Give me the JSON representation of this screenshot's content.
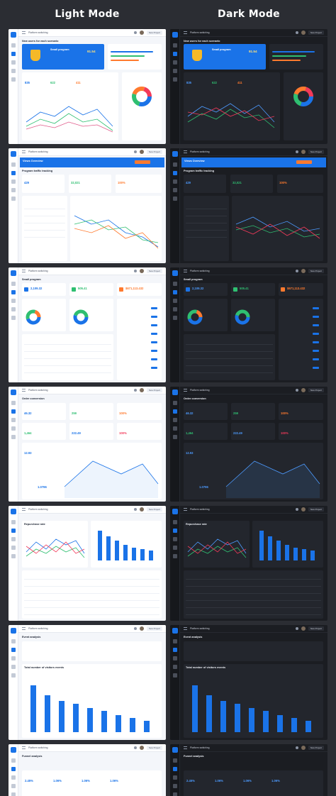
{
  "header": {
    "light_title": "Light Mode",
    "dark_title": "Dark Mode"
  },
  "topbar": {
    "platform_label": "Platform switching",
    "new_project": "New Project"
  },
  "screens": [
    {
      "title": "New users for each scenario",
      "hero_title": "Small program",
      "hero_value": "91.54",
      "stat_a": "835",
      "stat_b": "622",
      "stat_c": "411"
    },
    {
      "title": "Views Overview",
      "subtitle": "Program traffic tracking",
      "stat_a": "429",
      "stat_b": "32,021",
      "stat_c": "100%"
    },
    {
      "title": "Small program",
      "stat_a": "2,109.32",
      "stat_b": "505.41",
      "stat_c": "$671,113.432"
    },
    {
      "title": "Order conversion",
      "stat_a": "46.32",
      "stat_b": "259",
      "stat_c": "100%",
      "stat_d": "1,464",
      "stat_e": "222.49",
      "stat_f": "100%",
      "stat_g": "12.93",
      "stat_h": "1.0796"
    },
    {
      "title": "Repurchase rate"
    },
    {
      "title": "Event analysis",
      "subtitle": "Total number of visitors events"
    },
    {
      "title": "Funnel analysis",
      "stat_a": "2.45%",
      "stat_b": "1.06%",
      "stat_c": "1.06%",
      "stat_d": "1.06%"
    }
  ],
  "colors": {
    "accent": "#1a73e8",
    "light_bg": "#f4f6fa",
    "dark_bg": "#1b1d22",
    "page_bg": "#2b2d33"
  }
}
